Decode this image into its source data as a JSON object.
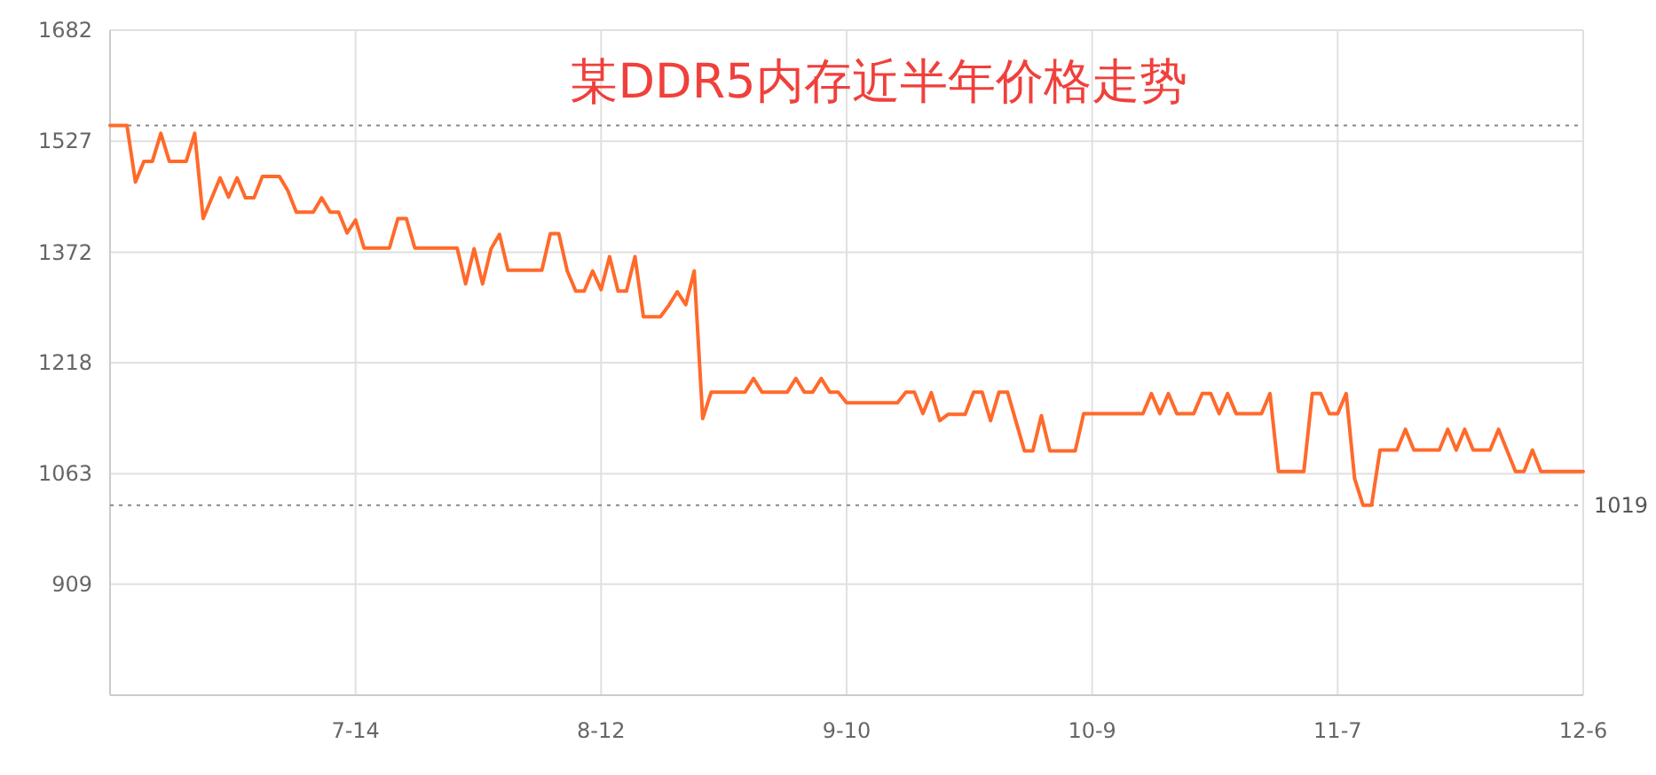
{
  "chart_data": {
    "type": "line",
    "title": "某DDR5内存近半年价格走势",
    "x": [
      "--06-15",
      "--06-17",
      "--06-18",
      "--06-19",
      "--06-20",
      "--06-21",
      "--06-22",
      "--06-24",
      "--06-25",
      "--06-26",
      "--06-28",
      "--06-29",
      "--06-30",
      "--07-01",
      "--07-02",
      "--07-03",
      "--07-05",
      "--07-06",
      "--07-07",
      "--07-09",
      "--07-10",
      "--07-11",
      "--07-12",
      "--07-13",
      "--07-14",
      "--07-15",
      "--07-18",
      "--07-19",
      "--07-20",
      "--07-21",
      "--07-26",
      "--07-27",
      "--07-28",
      "--07-29",
      "--07-30",
      "--07-31",
      "--08-01",
      "--08-05",
      "--08-06",
      "--08-07",
      "--08-08",
      "--08-09",
      "--08-10",
      "--08-11",
      "--08-12",
      "--08-13",
      "--08-14",
      "--08-15",
      "--08-16",
      "--08-17",
      "--08-19",
      "--08-20",
      "--08-21",
      "--08-22",
      "--08-23",
      "--08-24",
      "--08-25",
      "--08-29",
      "--08-30",
      "--08-31",
      "--09-03",
      "--09-04",
      "--09-05",
      "--09-06",
      "--09-07",
      "--09-08",
      "--09-09",
      "--09-10",
      "--09-16",
      "--09-17",
      "--09-18",
      "--09-19",
      "--09-20",
      "--09-21",
      "--09-22",
      "--09-24",
      "--09-25",
      "--09-26",
      "--09-27",
      "--09-28",
      "--09-29",
      "--10-01",
      "--10-02",
      "--10-03",
      "--10-04",
      "--10-07",
      "--10-08",
      "--10-15",
      "--10-16",
      "--10-17",
      "--10-18",
      "--10-19",
      "--10-21",
      "--10-22",
      "--10-23",
      "--10-24",
      "--10-25",
      "--10-26",
      "--10-29",
      "--10-30",
      "--10-31",
      "--11-03",
      "--11-04",
      "--11-05",
      "--11-06",
      "--11-07",
      "--11-08",
      "--11-09",
      "--11-10",
      "--11-11",
      "--11-12",
      "--11-14",
      "--11-15",
      "--11-16",
      "--11-19",
      "--11-20",
      "--11-21",
      "--11-22",
      "--11-23",
      "--11-25",
      "--11-26",
      "--11-28",
      "--11-29",
      "--11-30",
      "--12-01",
      "--12-06"
    ],
    "series": [
      {
        "color": "#ff6a2b",
        "values": [
          1549,
          1549,
          1470,
          1499,
          1499,
          1538,
          1499,
          1499,
          1538,
          1419,
          1476,
          1449,
          1476,
          1448,
          1448,
          1478,
          1478,
          1458,
          1428,
          1428,
          1448,
          1428,
          1428,
          1399,
          1417,
          1378,
          1378,
          1419,
          1419,
          1378,
          1378,
          1328,
          1377,
          1328,
          1377,
          1397,
          1347,
          1347,
          1398,
          1398,
          1346,
          1318,
          1318,
          1346,
          1320,
          1366,
          1318,
          1318,
          1366,
          1282,
          1282,
          1298,
          1317,
          1299,
          1346,
          1140,
          1177,
          1177,
          1196,
          1177,
          1177,
          1196,
          1177,
          1177,
          1196,
          1177,
          1177,
          1162,
          1162,
          1177,
          1177,
          1147,
          1176,
          1137,
          1146,
          1146,
          1177,
          1177,
          1137,
          1177,
          1177,
          1095,
          1095,
          1144,
          1095,
          1095,
          1147,
          1147,
          1175,
          1147,
          1175,
          1147,
          1147,
          1175,
          1175,
          1147,
          1175,
          1147,
          1147,
          1175,
          1066,
          1066,
          1175,
          1175,
          1147,
          1147,
          1175,
          1056,
          1019,
          1019,
          1096,
          1096,
          1125,
          1096,
          1096,
          1125,
          1096,
          1125,
          1096,
          1096,
          1125,
          1066,
          1066,
          1096,
          1066,
          1066
        ]
      }
    ],
    "xlim": [
      "--06-15",
      "--12-06"
    ],
    "xticks": [
      {
        "value": "--07-14",
        "label": "7-14"
      },
      {
        "value": "--08-12",
        "label": "8-12"
      },
      {
        "value": "--09-10",
        "label": "9-10"
      },
      {
        "value": "--10-09",
        "label": "10-9"
      },
      {
        "value": "--11-07",
        "label": "11-7"
      },
      {
        "value": "--12-06",
        "label": "12-6"
      }
    ],
    "ylim": [
      754,
      1682
    ],
    "yticks": [
      909,
      1063,
      1218,
      1372,
      1527,
      1682
    ],
    "grid": true,
    "marker": "none",
    "line_style": "solid",
    "ref_lines": [
      {
        "axis": "y",
        "value": 1549,
        "color": "#888888",
        "line_style": "dotted"
      },
      {
        "axis": "y",
        "value": 1019,
        "label": "1019",
        "color": "#888888",
        "line_style": "dotted"
      }
    ]
  }
}
